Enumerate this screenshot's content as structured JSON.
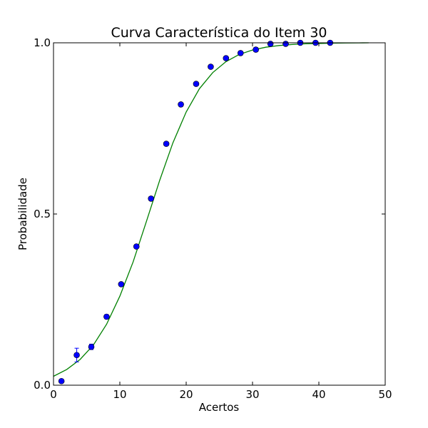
{
  "chart_data": {
    "type": "scatter",
    "title": "Curva Característica do Item 30",
    "xlabel": "Acertos",
    "ylabel": "Probabilidade",
    "xlim": [
      0,
      50
    ],
    "ylim": [
      0.0,
      1.0
    ],
    "x_ticks": [
      "0",
      "10",
      "20",
      "30",
      "40",
      "50"
    ],
    "y_ticks": [
      "0.0",
      "0.5",
      "1.0"
    ],
    "grid": false,
    "points": {
      "color": "#0000ff",
      "x": [
        1.2,
        3.5,
        5.7,
        8.0,
        10.2,
        12.5,
        14.7,
        17.0,
        19.2,
        21.5,
        23.7,
        26.0,
        28.2,
        30.5,
        32.7,
        35.0,
        37.2,
        39.5,
        41.7
      ],
      "y": [
        0.012,
        0.088,
        0.112,
        0.2,
        0.295,
        0.405,
        0.545,
        0.705,
        0.82,
        0.88,
        0.93,
        0.955,
        0.97,
        0.98,
        0.997,
        0.997,
        1.0,
        1.0,
        1.0
      ],
      "yerr": [
        0.004,
        0.02,
        0.008,
        0.006,
        0.005,
        0.005,
        0.006,
        0.005,
        0.005,
        0.005,
        0.004,
        0.004,
        0.006,
        0.006,
        0.003,
        0.003,
        0.002,
        0.002,
        0.002
      ]
    },
    "curve": {
      "color": "#008000",
      "x": [
        0,
        2,
        4,
        6,
        8,
        10,
        12,
        14,
        16,
        18,
        20,
        22,
        24,
        26,
        28,
        30,
        32,
        34,
        36,
        38,
        40,
        42,
        44,
        46,
        47.5
      ],
      "y": [
        0.026,
        0.046,
        0.075,
        0.117,
        0.178,
        0.26,
        0.36,
        0.478,
        0.598,
        0.708,
        0.798,
        0.866,
        0.913,
        0.945,
        0.966,
        0.979,
        0.987,
        0.992,
        0.995,
        0.997,
        0.998,
        0.999,
        0.9995,
        0.9998,
        1.0
      ]
    }
  }
}
